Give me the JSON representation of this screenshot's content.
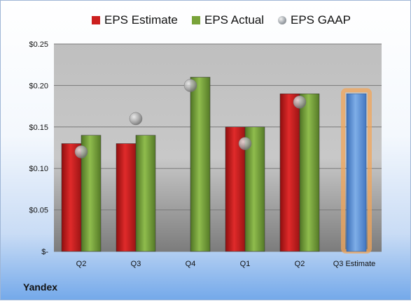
{
  "chart_data": {
    "type": "bar",
    "categories": [
      "Q2",
      "Q3",
      "Q4",
      "Q1",
      "Q2",
      "Q3 Estimate"
    ],
    "series": [
      {
        "name": "EPS Estimate",
        "color": "#cc1f1f",
        "values": [
          0.13,
          0.13,
          null,
          0.15,
          0.19,
          null
        ]
      },
      {
        "name": "EPS Actual",
        "color": "#79a33a",
        "values": [
          0.14,
          0.14,
          0.21,
          0.15,
          0.19,
          null
        ]
      },
      {
        "name": "EPS GAAP",
        "color": "#9aa0a6",
        "marker": "circle",
        "values": [
          0.12,
          0.16,
          0.2,
          0.13,
          0.18,
          null
        ]
      },
      {
        "name": "",
        "color": "#5b8fd6",
        "highlight": "#f2a65a",
        "values": [
          null,
          null,
          null,
          null,
          null,
          0.19
        ]
      }
    ],
    "ylim": [
      0,
      0.25
    ],
    "yticks": [
      0,
      0.05,
      0.1,
      0.15,
      0.2,
      0.25
    ],
    "ytick_labels": [
      "$-",
      "$0.05",
      "$0.10",
      "$0.15",
      "$0.20",
      "$0.25"
    ],
    "grid": true,
    "legend_placement": "top",
    "xlabel": "",
    "ylabel": ""
  },
  "legend": {
    "items": [
      {
        "label": "EPS Estimate",
        "kind": "square",
        "color": "#cc1f1f"
      },
      {
        "label": "EPS Actual",
        "kind": "square",
        "color": "#79a33a"
      },
      {
        "label": "EPS GAAP",
        "kind": "circle",
        "color": "#9aa0a6"
      }
    ]
  },
  "company": "Yandex"
}
